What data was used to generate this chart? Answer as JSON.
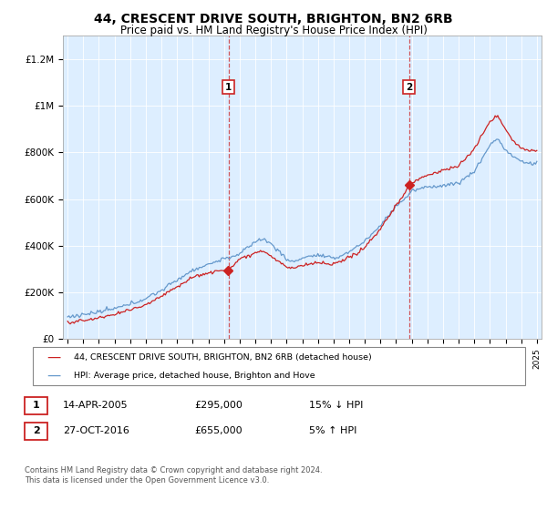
{
  "title": "44, CRESCENT DRIVE SOUTH, BRIGHTON, BN2 6RB",
  "subtitle": "Price paid vs. HM Land Registry's House Price Index (HPI)",
  "title_fontsize": 10,
  "subtitle_fontsize": 8.5,
  "background_color": "#ffffff",
  "plot_bg_color": "#ddeeff",
  "ylim": [
    0,
    1300000
  ],
  "yticks": [
    0,
    200000,
    400000,
    600000,
    800000,
    1000000,
    1200000
  ],
  "ytick_labels": [
    "£0",
    "£200K",
    "£400K",
    "£600K",
    "£800K",
    "£1M",
    "£1.2M"
  ],
  "line1_color": "#cc2222",
  "line2_color": "#6699cc",
  "line1_label": "44, CRESCENT DRIVE SOUTH, BRIGHTON, BN2 6RB (detached house)",
  "line2_label": "HPI: Average price, detached house, Brighton and Hove",
  "transaction1_x": 2005.29,
  "transaction1_price": 295000,
  "transaction1_date": "14-APR-2005",
  "transaction1_price_str": "£295,000",
  "transaction1_pct": "15% ↓ HPI",
  "transaction2_x": 2016.83,
  "transaction2_price": 655000,
  "transaction2_date": "27-OCT-2016",
  "transaction2_price_str": "£655,000",
  "transaction2_pct": "5% ↑ HPI",
  "footer": "Contains HM Land Registry data © Crown copyright and database right 2024.\nThis data is licensed under the Open Government Licence v3.0.",
  "xstart_year": 1995,
  "xend_year": 2025
}
